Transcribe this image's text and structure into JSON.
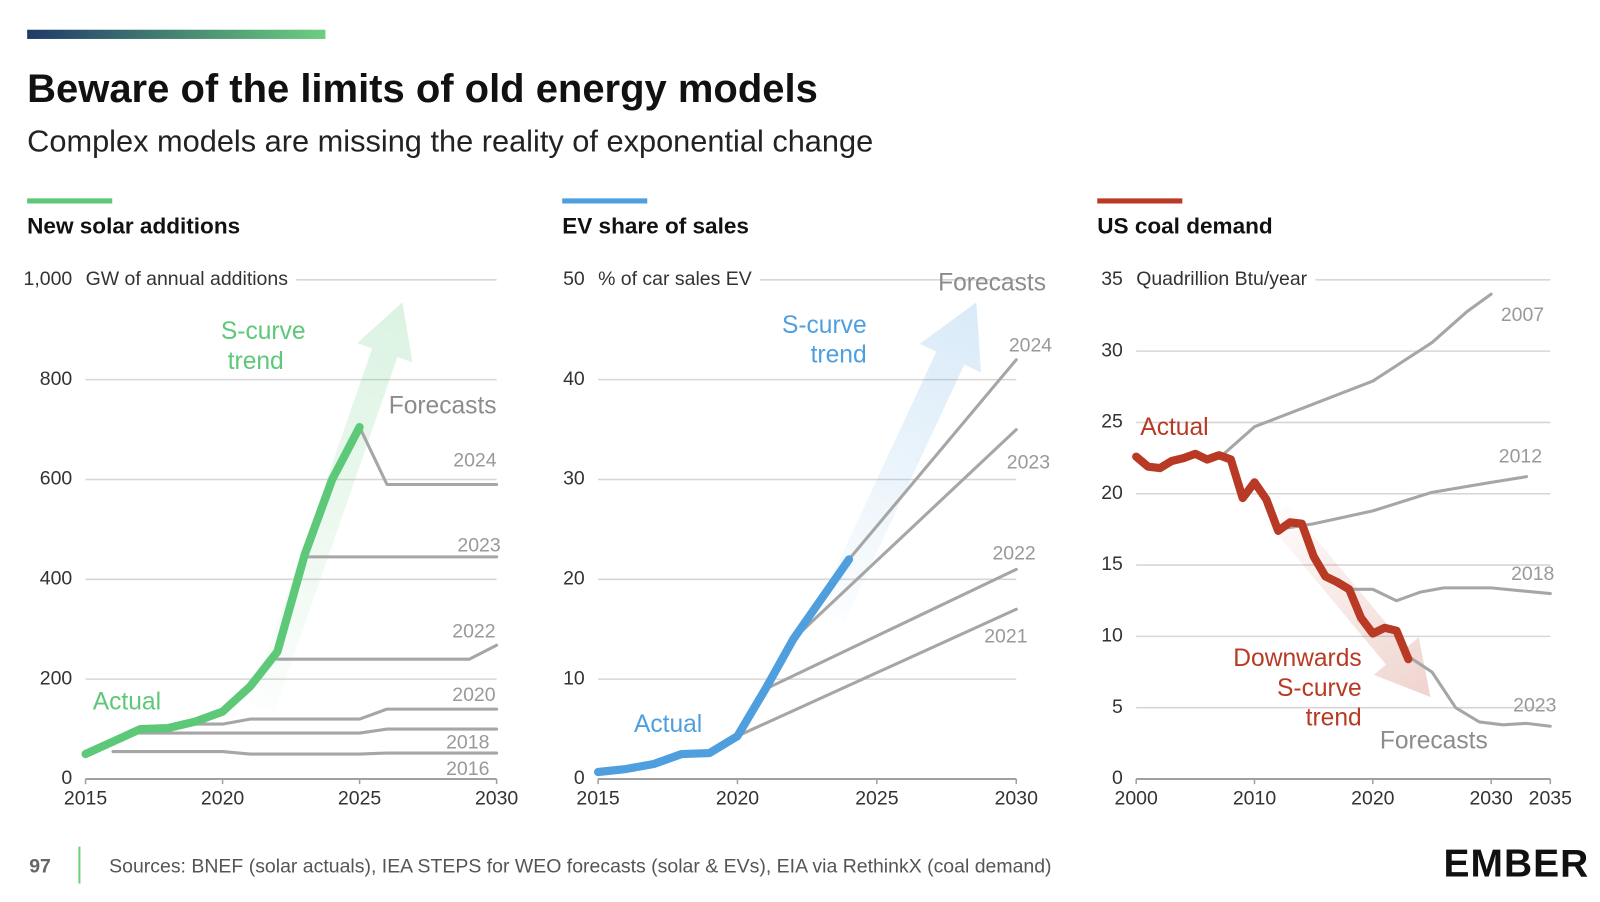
{
  "header": {
    "title": "Beware of the limits of old energy models",
    "subtitle": "Complex models are missing the reality of exponential change"
  },
  "chart_data": [
    {
      "type": "line",
      "title": "New solar additions",
      "y_label": "GW of annual additions",
      "xlim": [
        2015,
        2030
      ],
      "xticks": [
        2015,
        2020,
        2025,
        2030
      ],
      "ylim": [
        0,
        1000
      ],
      "yticks": [
        0,
        200,
        400,
        600,
        800,
        {
          "value": 1000,
          "label": "1,000"
        }
      ],
      "grid": true,
      "series": [
        {
          "name": "Actual",
          "color": "#5cc878",
          "x": [
            2015,
            2016,
            2017,
            2018,
            2019,
            2020,
            2021,
            2022,
            2023,
            2024,
            2025
          ],
          "values": [
            50,
            75,
            100,
            102,
            115,
            135,
            185,
            255,
            450,
            600,
            705
          ]
        },
        {
          "name": "2016",
          "color": "#a6a6a6",
          "x": [
            2016,
            2020,
            2021,
            2025,
            2026,
            2030
          ],
          "values": [
            55,
            55,
            50,
            50,
            52,
            52
          ]
        },
        {
          "name": "2018",
          "color": "#a6a6a6",
          "x": [
            2017,
            2025,
            2026,
            2030
          ],
          "values": [
            92,
            92,
            100,
            100
          ]
        },
        {
          "name": "2020",
          "color": "#a6a6a6",
          "x": [
            2019,
            2020,
            2021,
            2025,
            2026,
            2030
          ],
          "values": [
            110,
            110,
            120,
            120,
            140,
            140
          ]
        },
        {
          "name": "2022",
          "color": "#a6a6a6",
          "x": [
            2022,
            2029,
            2030
          ],
          "values": [
            240,
            240,
            268
          ]
        },
        {
          "name": "2023",
          "color": "#a6a6a6",
          "x": [
            2023,
            2030
          ],
          "values": [
            445,
            445
          ]
        },
        {
          "name": "2024",
          "color": "#a6a6a6",
          "x": [
            2025,
            2026,
            2030
          ],
          "values": [
            705,
            590,
            590
          ]
        }
      ],
      "annotations": [
        {
          "text": "S-curve trend",
          "color": "#5cc878"
        },
        {
          "text": "Forecasts",
          "color": "#8c8c8c"
        }
      ]
    },
    {
      "type": "line",
      "title": "EV share of sales",
      "y_label": "% of car sales EV",
      "xlim": [
        2015,
        2030
      ],
      "xticks": [
        2015,
        2020,
        2025,
        2030
      ],
      "ylim": [
        0,
        50
      ],
      "yticks": [
        0,
        10,
        20,
        30,
        40,
        50
      ],
      "grid": true,
      "series": [
        {
          "name": "Actual",
          "color": "#4f9fdf",
          "x": [
            2015,
            2016,
            2017,
            2018,
            2019,
            2020,
            2021,
            2022,
            2023,
            2024
          ],
          "values": [
            0.7,
            1,
            1.5,
            2.5,
            2.6,
            4.3,
            9,
            14,
            18,
            22
          ]
        },
        {
          "name": "2021",
          "color": "#a6a6a6",
          "x": [
            2020,
            2030
          ],
          "values": [
            4.3,
            17
          ]
        },
        {
          "name": "2022",
          "color": "#a6a6a6",
          "x": [
            2021,
            2030
          ],
          "values": [
            9,
            21
          ]
        },
        {
          "name": "2023",
          "color": "#a6a6a6",
          "x": [
            2022,
            2030
          ],
          "values": [
            14,
            35
          ]
        },
        {
          "name": "2024",
          "color": "#a6a6a6",
          "x": [
            2024,
            2030
          ],
          "values": [
            22,
            42
          ]
        }
      ],
      "annotations": [
        {
          "text": "Forecasts",
          "color": "#8c8c8c"
        },
        {
          "text": "S-curve trend",
          "color": "#4f9fdf"
        }
      ]
    },
    {
      "type": "line",
      "title": "US coal demand",
      "y_label": "Quadrillion Btu/year",
      "xlim": [
        2000,
        2035
      ],
      "xticks": [
        2000,
        2010,
        2020,
        2030,
        2035
      ],
      "ylim": [
        0,
        35
      ],
      "yticks": [
        0,
        5,
        10,
        15,
        20,
        25,
        30,
        35
      ],
      "grid": true,
      "series": [
        {
          "name": "Actual",
          "color": "#b83a24",
          "x": [
            2000,
            2001,
            2002,
            2003,
            2004,
            2005,
            2006,
            2007,
            2008,
            2009,
            2010,
            2011,
            2012,
            2013,
            2014,
            2015,
            2016,
            2017,
            2018,
            2019,
            2020,
            2021,
            2022,
            2023
          ],
          "values": [
            22.6,
            21.9,
            21.8,
            22.3,
            22.5,
            22.8,
            22.4,
            22.7,
            22.4,
            19.7,
            20.8,
            19.6,
            17.4,
            18.0,
            17.9,
            15.6,
            14.2,
            13.8,
            13.3,
            11.3,
            10.2,
            10.6,
            10.4,
            8.4
          ]
        },
        {
          "name": "2007",
          "color": "#a6a6a6",
          "x": [
            2007,
            2010,
            2015,
            2020,
            2025,
            2028,
            2030
          ],
          "values": [
            22.5,
            24.7,
            26.3,
            27.9,
            30.6,
            32.8,
            34.0
          ]
        },
        {
          "name": "2012",
          "color": "#a6a6a6",
          "x": [
            2012,
            2015,
            2020,
            2025,
            2030,
            2033
          ],
          "values": [
            17.5,
            17.9,
            18.8,
            20.1,
            20.8,
            21.2
          ]
        },
        {
          "name": "2018",
          "color": "#a6a6a6",
          "x": [
            2018,
            2020,
            2022,
            2024,
            2026,
            2030,
            2035
          ],
          "values": [
            13.3,
            13.3,
            12.5,
            13.1,
            13.4,
            13.4,
            13.0
          ]
        },
        {
          "name": "2023",
          "color": "#a6a6a6",
          "x": [
            2023,
            2025,
            2027,
            2029,
            2031,
            2033,
            2035
          ],
          "values": [
            8.6,
            7.5,
            5.0,
            4.0,
            3.8,
            3.9,
            3.7
          ]
        }
      ],
      "annotations": [
        {
          "text": "Downwards S-curve trend",
          "color": "#b83a24"
        },
        {
          "text": "Forecasts",
          "color": "#8c8c8c"
        }
      ]
    }
  ],
  "footer": {
    "page": "97",
    "sources": "Sources: BNEF (solar actuals), IEA STEPS for WEO forecasts (solar & EVs), EIA via RethinkX (coal demand)",
    "logo": "EMBER"
  }
}
